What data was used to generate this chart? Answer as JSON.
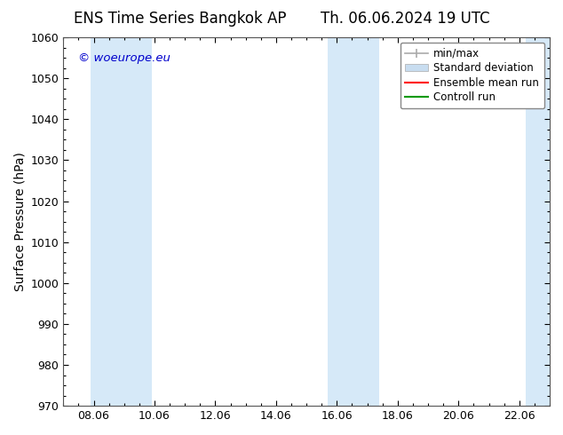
{
  "title_left": "ENS Time Series Bangkok AP",
  "title_right": "Th. 06.06.2024 19 UTC",
  "ylabel": "Surface Pressure (hPa)",
  "ylim": [
    970,
    1060
  ],
  "yticks": [
    970,
    980,
    990,
    1000,
    1010,
    1020,
    1030,
    1040,
    1050,
    1060
  ],
  "xlim": [
    0,
    16
  ],
  "xtick_labels": [
    "08.06",
    "10.06",
    "12.06",
    "14.06",
    "16.06",
    "18.06",
    "20.06",
    "22.06"
  ],
  "xtick_positions": [
    1,
    3,
    5,
    7,
    9,
    11,
    13,
    15
  ],
  "watermark": "© woeurope.eu",
  "watermark_color": "#0000cc",
  "bg_color": "#ffffff",
  "plot_bg_color": "#ffffff",
  "shaded_bands": [
    {
      "x_start": 0.9,
      "x_end": 2.9,
      "color": "#d6e9f8"
    },
    {
      "x_start": 8.7,
      "x_end": 10.4,
      "color": "#d6e9f8"
    },
    {
      "x_start": 15.2,
      "x_end": 16.0,
      "color": "#d6e9f8"
    }
  ],
  "legend_items": [
    {
      "label": "min/max",
      "color": "#aaaaaa",
      "style": "errorbar"
    },
    {
      "label": "Standard deviation",
      "color": "#c8ddf0",
      "style": "patch"
    },
    {
      "label": "Ensemble mean run",
      "color": "#ff0000",
      "style": "line"
    },
    {
      "label": "Controll run",
      "color": "#009900",
      "style": "line"
    }
  ],
  "title_fontsize": 12,
  "axis_label_fontsize": 10,
  "tick_fontsize": 9,
  "legend_fontsize": 8.5
}
